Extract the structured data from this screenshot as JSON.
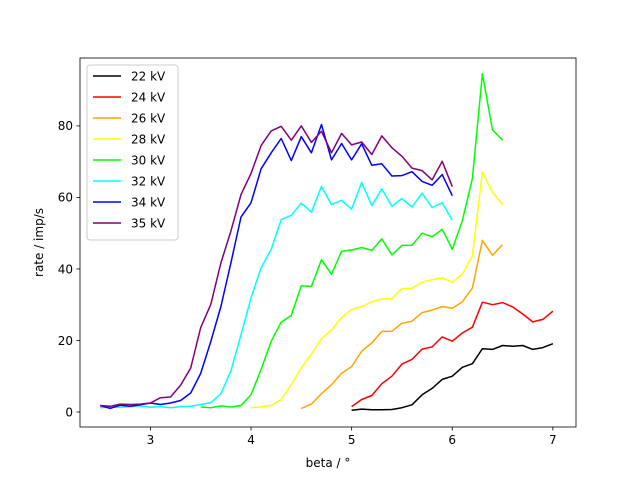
{
  "chart_data": {
    "type": "line",
    "xlabel": "beta / °",
    "ylabel": "rate / imp/s",
    "xlim": [
      2.3,
      7.23
    ],
    "ylim": [
      -4.2,
      99
    ],
    "xticks": [
      3,
      4,
      5,
      6,
      7
    ],
    "yticks": [
      0,
      20,
      40,
      60,
      80
    ],
    "grid": false,
    "legend_position": "upper-left",
    "series": [
      {
        "name": "22 kV",
        "color": "#000000",
        "x": [
          5.0,
          5.1,
          5.2,
          5.3,
          5.4,
          5.5,
          5.6,
          5.7,
          5.8,
          5.9,
          6.0,
          6.1,
          6.2,
          6.3,
          6.4,
          6.5,
          6.6,
          6.7,
          6.8,
          6.9,
          7.0
        ],
        "y": [
          0.5,
          0.8,
          0.6,
          0.6,
          0.7,
          1.2,
          2.0,
          4.8,
          6.6,
          9.1,
          10.0,
          12.5,
          13.5,
          17.7,
          17.5,
          18.6,
          18.4,
          18.6,
          17.5,
          18.0,
          19.1
        ]
      },
      {
        "name": "24 kV",
        "color": "#ff0000",
        "x": [
          5.0,
          5.1,
          5.2,
          5.3,
          5.4,
          5.5,
          5.6,
          5.7,
          5.8,
          5.9,
          6.0,
          6.1,
          6.2,
          6.3,
          6.4,
          6.5,
          6.6,
          6.7,
          6.8,
          6.9,
          7.0
        ],
        "y": [
          1.5,
          3.5,
          4.6,
          7.9,
          10.0,
          13.4,
          14.7,
          17.6,
          18.2,
          21.0,
          19.8,
          22.1,
          23.7,
          30.7,
          30.0,
          30.6,
          29.4,
          27.4,
          25.2,
          25.9,
          28.2
        ]
      },
      {
        "name": "26 kV",
        "color": "#ffa500",
        "x": [
          4.5,
          4.6,
          4.7,
          4.8,
          4.9,
          5.0,
          5.1,
          5.2,
          5.3,
          5.4,
          5.5,
          5.6,
          5.7,
          5.8,
          5.9,
          6.0,
          6.1,
          6.2,
          6.3,
          6.4,
          6.5
        ],
        "y": [
          1.0,
          2.2,
          5.1,
          7.6,
          10.8,
          12.7,
          17.0,
          19.3,
          22.5,
          22.6,
          24.8,
          25.4,
          27.8,
          28.5,
          29.5,
          29.0,
          30.8,
          34.7,
          48.0,
          43.8,
          46.8
        ]
      },
      {
        "name": "28 kV",
        "color": "#ffff00",
        "x": [
          4.0,
          4.1,
          4.2,
          4.3,
          4.4,
          4.5,
          4.6,
          4.7,
          4.8,
          4.9,
          5.0,
          5.1,
          5.2,
          5.3,
          5.4,
          5.5,
          5.6,
          5.7,
          5.8,
          5.9,
          6.0,
          6.1,
          6.2,
          6.3,
          6.4,
          6.5
        ],
        "y": [
          1.2,
          1.4,
          1.8,
          3.5,
          7.7,
          12.3,
          16.2,
          20.5,
          22.9,
          26.4,
          28.6,
          29.5,
          30.8,
          31.6,
          31.7,
          34.5,
          34.6,
          36.3,
          37.0,
          37.5,
          36.3,
          38.5,
          43.7,
          67.1,
          61.4,
          58.0
        ]
      },
      {
        "name": "30 kV",
        "color": "#00ff00",
        "x": [
          3.5,
          3.6,
          3.7,
          3.8,
          3.9,
          4.0,
          4.1,
          4.2,
          4.3,
          4.4,
          4.5,
          4.6,
          4.7,
          4.8,
          4.9,
          5.0,
          5.1,
          5.2,
          5.3,
          5.4,
          5.5,
          5.6,
          5.7,
          5.8,
          5.9,
          6.0,
          6.1,
          6.2,
          6.3,
          6.4,
          6.5
        ],
        "y": [
          1.4,
          1.2,
          1.7,
          1.4,
          1.8,
          4.8,
          11.9,
          19.8,
          25.1,
          27.0,
          35.3,
          35.1,
          42.6,
          38.5,
          44.9,
          45.3,
          46.0,
          45.2,
          48.4,
          43.9,
          46.6,
          46.6,
          50.0,
          49.0,
          51.1,
          45.5,
          53.5,
          65.3,
          94.6,
          78.9,
          76.0
        ]
      },
      {
        "name": "32 kV",
        "color": "#00ffff",
        "x": [
          2.5,
          2.6,
          2.7,
          2.8,
          2.9,
          3.0,
          3.1,
          3.2,
          3.3,
          3.4,
          3.5,
          3.6,
          3.7,
          3.8,
          3.9,
          4.0,
          4.1,
          4.2,
          4.3,
          4.4,
          4.5,
          4.6,
          4.7,
          4.8,
          4.9,
          5.0,
          5.1,
          5.2,
          5.3,
          5.4,
          5.5,
          5.6,
          5.7,
          5.8,
          5.9,
          6.0
        ],
        "y": [
          1.2,
          1.4,
          1.3,
          1.5,
          1.7,
          1.3,
          1.5,
          1.2,
          1.5,
          1.6,
          2.1,
          2.6,
          5.1,
          11.5,
          21.6,
          31.9,
          40.3,
          45.5,
          53.8,
          55.0,
          58.4,
          55.9,
          63.1,
          58.0,
          59.2,
          56.7,
          64.2,
          57.7,
          62.4,
          57.5,
          59.7,
          57.3,
          61.2,
          57.2,
          58.5,
          53.6
        ]
      },
      {
        "name": "34 kV",
        "color": "#0000ff",
        "x": [
          2.5,
          2.6,
          2.7,
          2.8,
          2.9,
          3.0,
          3.1,
          3.2,
          3.3,
          3.4,
          3.5,
          3.6,
          3.7,
          3.8,
          3.9,
          4.0,
          4.1,
          4.2,
          4.3,
          4.4,
          4.5,
          4.6,
          4.7,
          4.8,
          4.9,
          5.0,
          5.1,
          5.2,
          5.3,
          5.4,
          5.5,
          5.6,
          5.7,
          5.8,
          5.9,
          6.0
        ],
        "y": [
          1.8,
          1.0,
          1.9,
          1.6,
          2.0,
          2.5,
          2.1,
          2.5,
          3.2,
          5.3,
          10.8,
          19.7,
          29.5,
          41.7,
          54.5,
          58.5,
          68.0,
          72.5,
          76.5,
          70.3,
          77.0,
          72.5,
          80.4,
          70.5,
          75.1,
          70.5,
          75.0,
          69.0,
          69.4,
          66.0,
          66.1,
          67.2,
          64.5,
          63.4,
          66.4,
          60.5
        ]
      },
      {
        "name": "35 kV",
        "color": "#800080",
        "x": [
          2.5,
          2.6,
          2.7,
          2.8,
          2.9,
          3.0,
          3.1,
          3.2,
          3.3,
          3.4,
          3.5,
          3.6,
          3.7,
          3.8,
          3.9,
          4.0,
          4.1,
          4.2,
          4.3,
          4.4,
          4.5,
          4.6,
          4.7,
          4.8,
          4.9,
          5.0,
          5.1,
          5.2,
          5.3,
          5.4,
          5.5,
          5.6,
          5.7,
          5.8,
          5.9,
          6.0
        ],
        "y": [
          1.8,
          1.6,
          2.2,
          2.1,
          2.2,
          2.5,
          4.0,
          4.2,
          7.5,
          12.3,
          23.6,
          30.1,
          41.7,
          50.6,
          60.8,
          66.7,
          74.5,
          78.6,
          79.9,
          76.0,
          80.0,
          75.4,
          78.5,
          72.5,
          77.9,
          74.7,
          75.5,
          72.0,
          77.2,
          73.9,
          71.5,
          68.2,
          67.5,
          64.9,
          70.1,
          63.0
        ]
      }
    ]
  }
}
